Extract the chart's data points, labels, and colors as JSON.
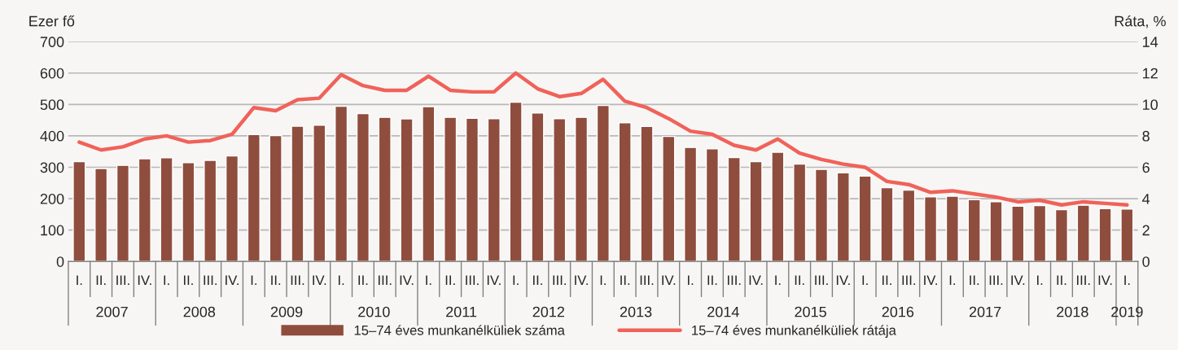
{
  "chart_data": {
    "type": "bar",
    "ylabel": "Ezer fő",
    "y2label": "Ráta, %",
    "categories": [
      "I.",
      "II.",
      "III.",
      "IV.",
      "I.",
      "II.",
      "III.",
      "IV.",
      "I.",
      "II.",
      "III.",
      "IV.",
      "I.",
      "II.",
      "III.",
      "IV.",
      "I.",
      "II.",
      "III.",
      "IV.",
      "I.",
      "II.",
      "III.",
      "IV.",
      "I.",
      "II.",
      "III.",
      "IV.",
      "I.",
      "II.",
      "III.",
      "IV.",
      "I.",
      "II.",
      "III.",
      "IV.",
      "I.",
      "II.",
      "III.",
      "IV.",
      "I.",
      "II.",
      "III.",
      "IV.",
      "I.",
      "II.",
      "III.",
      "IV.",
      "I."
    ],
    "annotations": [
      "2007",
      "2008",
      "2009",
      "2010",
      "2011",
      "2012",
      "2013",
      "2014",
      "2015",
      "2016",
      "2017",
      "2018",
      "2019"
    ],
    "series": [
      {
        "name": "15–74 éves munkanélküliek száma",
        "color": "#8f4d3e",
        "values": [
          318,
          296,
          306,
          327,
          330,
          315,
          322,
          336,
          404,
          401,
          431,
          434,
          494,
          471,
          459,
          454,
          493,
          459,
          456,
          455,
          507,
          473,
          455,
          459,
          497,
          442,
          430,
          398,
          363,
          359,
          331,
          318,
          348,
          310,
          293,
          282,
          272,
          235,
          227,
          206,
          208,
          197,
          190,
          176,
          178,
          165,
          179,
          168,
          167
        ]
      },
      {
        "name": "15–74 éves munkanélküliek rátája",
        "type": "line",
        "axis": "y2",
        "color": "#f0625a",
        "values": [
          7.6,
          7.1,
          7.3,
          7.8,
          8.0,
          7.6,
          7.7,
          8.1,
          9.8,
          9.6,
          10.3,
          10.4,
          11.9,
          11.2,
          10.9,
          10.9,
          11.8,
          10.9,
          10.8,
          10.8,
          12.0,
          11.0,
          10.5,
          10.7,
          11.6,
          10.2,
          9.8,
          9.1,
          8.3,
          8.1,
          7.4,
          7.1,
          7.8,
          6.9,
          6.5,
          6.2,
          6.0,
          5.1,
          4.9,
          4.4,
          4.5,
          4.3,
          4.1,
          3.8,
          3.9,
          3.6,
          3.8,
          3.7,
          3.6
        ]
      }
    ],
    "ylim": [
      0,
      700
    ],
    "yticks": [
      0,
      100,
      200,
      300,
      400,
      500,
      600,
      700
    ],
    "y2lim": [
      0,
      14
    ],
    "y2ticks": [
      0,
      2,
      4,
      6,
      8,
      10,
      12,
      14
    ],
    "grid": "y",
    "legend": "bottom",
    "marker": "none",
    "line_style": "solid"
  }
}
